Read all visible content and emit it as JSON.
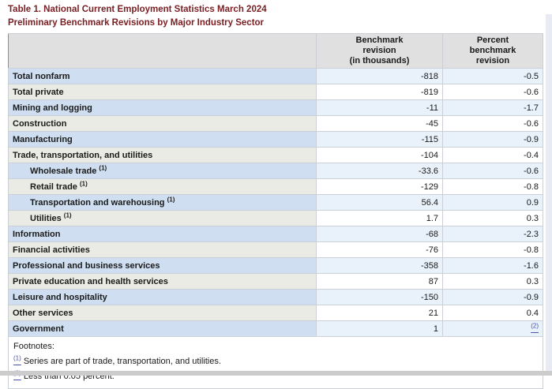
{
  "title": {
    "line1": "Table 1. National Current Employment Statistics March 2024",
    "line2": "Preliminary Benchmark Revisions by Major Industry Sector"
  },
  "colors": {
    "title_text": "#7b1e22",
    "footnote_link": "#4753a6",
    "row_blue_label": "#cfdff1",
    "row_blue_value": "#e9f1fa",
    "row_gray_label": "#ebebe5",
    "header_background": "#e0e0e0"
  },
  "table": {
    "columns": {
      "industry": "",
      "benchmark": "Benchmark\nrevision\n(in thousands)",
      "percent": "Percent\nbenchmark\nrevision"
    },
    "rows": [
      {
        "label": "Total nonfarm",
        "benchmark": "-818",
        "percent": "-0.5"
      },
      {
        "label": "Total private",
        "benchmark": "-819",
        "percent": "-0.6"
      },
      {
        "label": "Mining and logging",
        "benchmark": "-11",
        "percent": "-1.7"
      },
      {
        "label": "Construction",
        "benchmark": "-45",
        "percent": "-0.6"
      },
      {
        "label": "Manufacturing",
        "benchmark": "-115",
        "percent": "-0.9"
      },
      {
        "label": "Trade, transportation, and utilities",
        "benchmark": "-104",
        "percent": "-0.4"
      },
      {
        "label": "Wholesale trade",
        "sup": "(1)",
        "indent": true,
        "benchmark": "-33.6",
        "percent": "-0.6"
      },
      {
        "label": "Retail trade",
        "sup": "(1)",
        "indent": true,
        "benchmark": "-129",
        "percent": "-0.8"
      },
      {
        "label": "Transportation and warehousing",
        "sup": "(1)",
        "indent": true,
        "benchmark": "56.4",
        "percent": "0.9"
      },
      {
        "label": "Utilities",
        "sup": "(1)",
        "indent": true,
        "benchmark": "1.7",
        "percent": "0.3"
      },
      {
        "label": "Information",
        "benchmark": "-68",
        "percent": "-2.3"
      },
      {
        "label": "Financial activities",
        "benchmark": "-76",
        "percent": "-0.8"
      },
      {
        "label": "Professional and business services",
        "benchmark": "-358",
        "percent": "-1.6"
      },
      {
        "label": "Private education and health services",
        "benchmark": "87",
        "percent": "0.3"
      },
      {
        "label": "Leisure and hospitality",
        "benchmark": "-150",
        "percent": "-0.9"
      },
      {
        "label": "Other services",
        "benchmark": "21",
        "percent": "0.4"
      },
      {
        "label": "Government",
        "benchmark": "1",
        "percent": "(2)",
        "percent_is_link": true
      }
    ]
  },
  "footnotes": {
    "heading": "Footnotes:",
    "items": [
      {
        "marker": "(1)",
        "text": "Series are part of trade, transportation, and utilities."
      },
      {
        "marker": "(2)",
        "text": "Less than 0.05 percent."
      }
    ]
  }
}
